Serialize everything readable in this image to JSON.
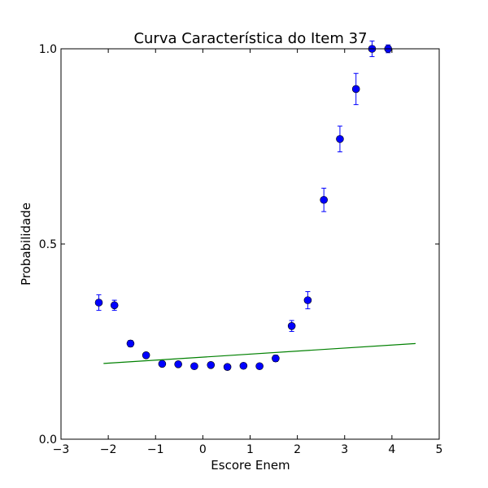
{
  "chart_data": {
    "type": "scatter",
    "title": "Curva Característica do Item 37",
    "xlabel": "Escore Enem",
    "ylabel": "Probabilidade",
    "xlim": [
      -3,
      5
    ],
    "ylim": [
      0.0,
      1.0
    ],
    "xticks": [
      -3,
      -2,
      -1,
      0,
      1,
      2,
      3,
      4,
      5
    ],
    "xtick_labels": [
      "−3",
      "−2",
      "−1",
      "0",
      "1",
      "2",
      "3",
      "4",
      "5"
    ],
    "yticks": [
      0.0,
      0.5,
      1.0
    ],
    "ytick_labels": [
      "0.0",
      "0.5",
      "1.0"
    ],
    "grid": false,
    "series": [
      {
        "kind": "errorbar",
        "color": "#0000ff",
        "points": [
          {
            "x": -2.2,
            "y": 0.35,
            "err": 0.02
          },
          {
            "x": -1.87,
            "y": 0.343,
            "err": 0.013
          },
          {
            "x": -1.53,
            "y": 0.245,
            "err": 0.008
          },
          {
            "x": -1.2,
            "y": 0.215,
            "err": 0.006
          },
          {
            "x": -0.86,
            "y": 0.193,
            "err": 0.005
          },
          {
            "x": -0.52,
            "y": 0.192,
            "err": 0.004
          },
          {
            "x": -0.18,
            "y": 0.187,
            "err": 0.004
          },
          {
            "x": 0.17,
            "y": 0.19,
            "err": 0.004
          },
          {
            "x": 0.52,
            "y": 0.185,
            "err": 0.004
          },
          {
            "x": 0.86,
            "y": 0.188,
            "err": 0.004
          },
          {
            "x": 1.2,
            "y": 0.187,
            "err": 0.005
          },
          {
            "x": 1.54,
            "y": 0.207,
            "err": 0.008
          },
          {
            "x": 1.88,
            "y": 0.29,
            "err": 0.014
          },
          {
            "x": 2.22,
            "y": 0.356,
            "err": 0.022
          },
          {
            "x": 2.56,
            "y": 0.613,
            "err": 0.03
          },
          {
            "x": 2.9,
            "y": 0.769,
            "err": 0.033
          },
          {
            "x": 3.24,
            "y": 0.897,
            "err": 0.04
          },
          {
            "x": 3.58,
            "y": 1.0,
            "err": 0.02
          },
          {
            "x": 3.92,
            "y": 1.0,
            "err": 0.01
          }
        ]
      },
      {
        "kind": "line",
        "color": "#008000",
        "x": [
          -2.1,
          4.5
        ],
        "y": [
          0.194,
          0.245
        ]
      }
    ]
  }
}
